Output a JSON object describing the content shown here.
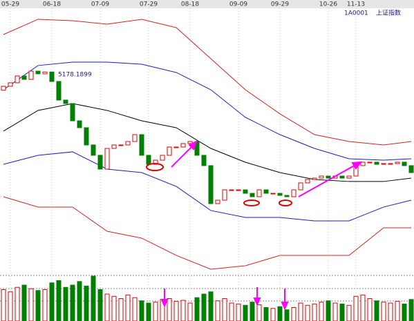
{
  "chart_data": {
    "type": "candlestick",
    "symbol": "1A0001",
    "title": "上证指数",
    "peak_label": "5178.1899",
    "categories": [
      null,
      "05-29",
      null,
      null,
      null,
      null,
      null,
      "06-18",
      null,
      null,
      null,
      null,
      null,
      null,
      "07-09",
      null,
      null,
      null,
      null,
      null,
      null,
      "07-29",
      null,
      null,
      null,
      null,
      null,
      "08-18",
      null,
      null,
      null,
      null,
      null,
      null,
      "09-09",
      null,
      null,
      null,
      null,
      null,
      "09-29",
      null,
      null,
      null,
      null,
      null,
      null,
      "10-26",
      null,
      null,
      null,
      "11-13",
      null,
      null,
      null,
      null,
      null,
      null,
      null,
      null
    ],
    "open": [
      4850,
      4915,
      4972,
      5085,
      5028,
      5164,
      5120,
      5150,
      4994,
      4688,
      4631,
      4347,
      4234,
      3950,
      3780,
      3553,
      3893,
      3950,
      3950,
      4007,
      4120,
      3780,
      3632,
      3700,
      3780,
      3916,
      3916,
      3973,
      4007,
      3780,
      3610,
      2985,
      3042,
      3212,
      3212,
      3212,
      3155,
      3099,
      3212,
      3155,
      3155,
      3121,
      3099,
      3212,
      3326,
      3383,
      3405,
      3439,
      3405,
      3439,
      3405,
      3439,
      3610,
      3667,
      3667,
      3632,
      3644,
      3644,
      3667,
      3610
    ],
    "close": [
      4915,
      4972,
      5085,
      5028,
      5164,
      5120,
      5150,
      4994,
      4688,
      4631,
      4347,
      4234,
      3950,
      3780,
      3553,
      3893,
      3950,
      3950,
      4007,
      4120,
      3780,
      3632,
      3700,
      3780,
      3916,
      3916,
      3973,
      4007,
      3780,
      3610,
      2985,
      3042,
      3212,
      3212,
      3212,
      3155,
      3099,
      3212,
      3155,
      3155,
      3121,
      3099,
      3212,
      3326,
      3383,
      3405,
      3439,
      3405,
      3439,
      3405,
      3439,
      3610,
      3667,
      3667,
      3632,
      3644,
      3644,
      3667,
      3610,
      3496
    ],
    "up_color": "#e00000",
    "down_color": "#008000",
    "ylim": [
      1850,
      6220
    ],
    "bands": [
      {
        "color": "#d42020",
        "x": [
          0,
          5,
          10,
          15,
          20,
          25,
          30,
          35,
          40,
          45,
          50,
          55,
          59
        ],
        "values": [
          5766,
          6016,
          5993,
          5936,
          6016,
          5880,
          5369,
          4858,
          4461,
          4120,
          4007,
          3950,
          4007
        ]
      },
      {
        "color": "#1a1acc",
        "x": [
          0,
          5,
          10,
          15,
          20,
          25,
          30,
          35,
          40,
          45,
          50,
          55,
          59
        ],
        "values": [
          4858,
          5256,
          5312,
          5312,
          5278,
          5142,
          4858,
          4404,
          4120,
          3893,
          3723,
          3700,
          3723
        ]
      },
      {
        "color": "#000000",
        "x": [
          0,
          5,
          10,
          15,
          20,
          25,
          30,
          35,
          40,
          45,
          50,
          55,
          59
        ],
        "values": [
          4177,
          4518,
          4631,
          4518,
          4347,
          4234,
          3893,
          3666,
          3496,
          3383,
          3349,
          3349,
          3405
        ]
      },
      {
        "color": "#1a1acc",
        "x": [
          0,
          5,
          10,
          15,
          20,
          25,
          30,
          35,
          40,
          45,
          50,
          55,
          59
        ],
        "values": [
          3632,
          3780,
          3837,
          3553,
          3496,
          3269,
          2872,
          2758,
          2758,
          2702,
          2702,
          2929,
          3042
        ]
      },
      {
        "color": "#d42020",
        "x": [
          0,
          5,
          10,
          15,
          20,
          25,
          30,
          35,
          40,
          45,
          50,
          55,
          59
        ],
        "values": [
          3099,
          2929,
          2929,
          2531,
          2418,
          2134,
          1907,
          1964,
          2134,
          2134,
          2134,
          2588,
          2588
        ]
      }
    ],
    "volume": {
      "ylim": [
        0,
        100
      ],
      "values": [
        70,
        65,
        75,
        80,
        72,
        68,
        70,
        85,
        90,
        75,
        80,
        88,
        78,
        100,
        70,
        60,
        55,
        50,
        58,
        52,
        45,
        40,
        42,
        48,
        50,
        44,
        46,
        40,
        52,
        60,
        65,
        45,
        50,
        40,
        38,
        35,
        42,
        36,
        30,
        28,
        32,
        25,
        30,
        40,
        35,
        38,
        42,
        45,
        40,
        38,
        35,
        55,
        58,
        50,
        45,
        42,
        40,
        44,
        38,
        48
      ]
    }
  }
}
